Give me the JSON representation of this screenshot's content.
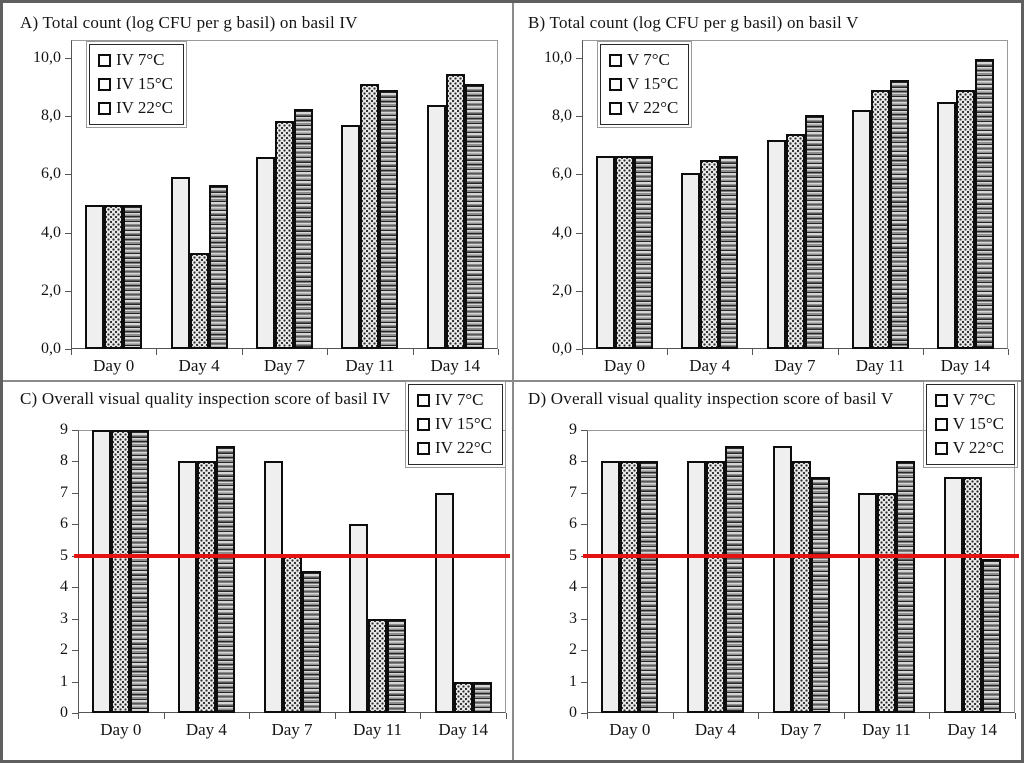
{
  "figure": {
    "outer_border_color": "#5f5f5f",
    "divider_color": "#8a8a8a",
    "reference_line_color": "#e51212",
    "bar_fill_color": "#efefef",
    "bar_border_color": "#0d0d0d"
  },
  "chart_data": [
    {
      "type": "bar",
      "panel_label": "A",
      "title": "A) Total count (log CFU per g basil) on basil IV",
      "categories": [
        "Day 0",
        "Day 4",
        "Day 7",
        "Day 11",
        "Day 14"
      ],
      "series": [
        {
          "name": "IV 7°C",
          "pattern": "plain",
          "values": [
            4.95,
            5.9,
            6.6,
            7.7,
            8.4
          ]
        },
        {
          "name": "IV 15°C",
          "pattern": "dots",
          "values": [
            4.95,
            3.3,
            7.85,
            9.1,
            9.45
          ]
        },
        {
          "name": "IV 22°C",
          "pattern": "hlines",
          "values": [
            4.95,
            5.65,
            8.25,
            8.9,
            9.1
          ]
        }
      ],
      "ylim": [
        0,
        10
      ],
      "ytick_step": 2,
      "ytick_labels": [
        "0,0",
        "2,0",
        "4,0",
        "6,0",
        "8,0",
        "10,0"
      ],
      "xlabel": "",
      "ylabel": "",
      "grid": false,
      "legend_position": "top-left",
      "reference_line": null
    },
    {
      "type": "bar",
      "panel_label": "B",
      "title": "B) Total count (log CFU per g basil) on basil V",
      "categories": [
        "Day 0",
        "Day 4",
        "Day 7",
        "Day 11",
        "Day 14"
      ],
      "series": [
        {
          "name": "V 7°C",
          "pattern": "plain",
          "values": [
            6.65,
            6.05,
            7.2,
            8.2,
            8.5
          ]
        },
        {
          "name": "V 15°C",
          "pattern": "dots",
          "values": [
            6.65,
            6.5,
            7.4,
            8.9,
            8.9
          ]
        },
        {
          "name": "V 22°C",
          "pattern": "hlines",
          "values": [
            6.65,
            6.65,
            8.05,
            9.25,
            9.95
          ]
        }
      ],
      "ylim": [
        0,
        10
      ],
      "ytick_step": 2,
      "ytick_labels": [
        "0,0",
        "2,0",
        "4,0",
        "6,0",
        "8,0",
        "10,0"
      ],
      "xlabel": "",
      "ylabel": "",
      "grid": false,
      "legend_position": "top-left",
      "reference_line": null
    },
    {
      "type": "bar",
      "panel_label": "C",
      "title": "C) Overall visual quality inspection score of basil IV",
      "categories": [
        "Day 0",
        "Day 4",
        "Day 7",
        "Day 11",
        "Day 14"
      ],
      "series": [
        {
          "name": "IV 7°C",
          "pattern": "plain",
          "values": [
            9,
            8,
            8,
            6,
            7
          ]
        },
        {
          "name": "IV 15°C",
          "pattern": "dots",
          "values": [
            9,
            8,
            5,
            3,
            1
          ]
        },
        {
          "name": "IV 22°C",
          "pattern": "hlines",
          "values": [
            9,
            8.5,
            4.5,
            3,
            1
          ]
        }
      ],
      "ylim": [
        0,
        9
      ],
      "ytick_step": 1,
      "ytick_labels": [
        "0",
        "1",
        "2",
        "3",
        "4",
        "5",
        "6",
        "7",
        "8",
        "9"
      ],
      "xlabel": "",
      "ylabel": "",
      "grid": false,
      "legend_position": "top-right",
      "reference_line": 5
    },
    {
      "type": "bar",
      "panel_label": "D",
      "title": "D) Overall visual quality inspection score of basil V",
      "categories": [
        "Day 0",
        "Day 4",
        "Day 7",
        "Day 11",
        "Day 14"
      ],
      "series": [
        {
          "name": "V 7°C",
          "pattern": "plain",
          "values": [
            8,
            8,
            8.5,
            7,
            7.5
          ]
        },
        {
          "name": "V 15°C",
          "pattern": "dots",
          "values": [
            8,
            8,
            8,
            7,
            7.5
          ]
        },
        {
          "name": "V 22°C",
          "pattern": "hlines",
          "values": [
            8,
            8.5,
            7.5,
            8,
            4.9
          ]
        }
      ],
      "ylim": [
        0,
        9
      ],
      "ytick_step": 1,
      "ytick_labels": [
        "0",
        "1",
        "2",
        "3",
        "4",
        "5",
        "6",
        "7",
        "8",
        "9"
      ],
      "xlabel": "",
      "ylabel": "",
      "grid": false,
      "legend_position": "top-right",
      "reference_line": 5
    }
  ]
}
